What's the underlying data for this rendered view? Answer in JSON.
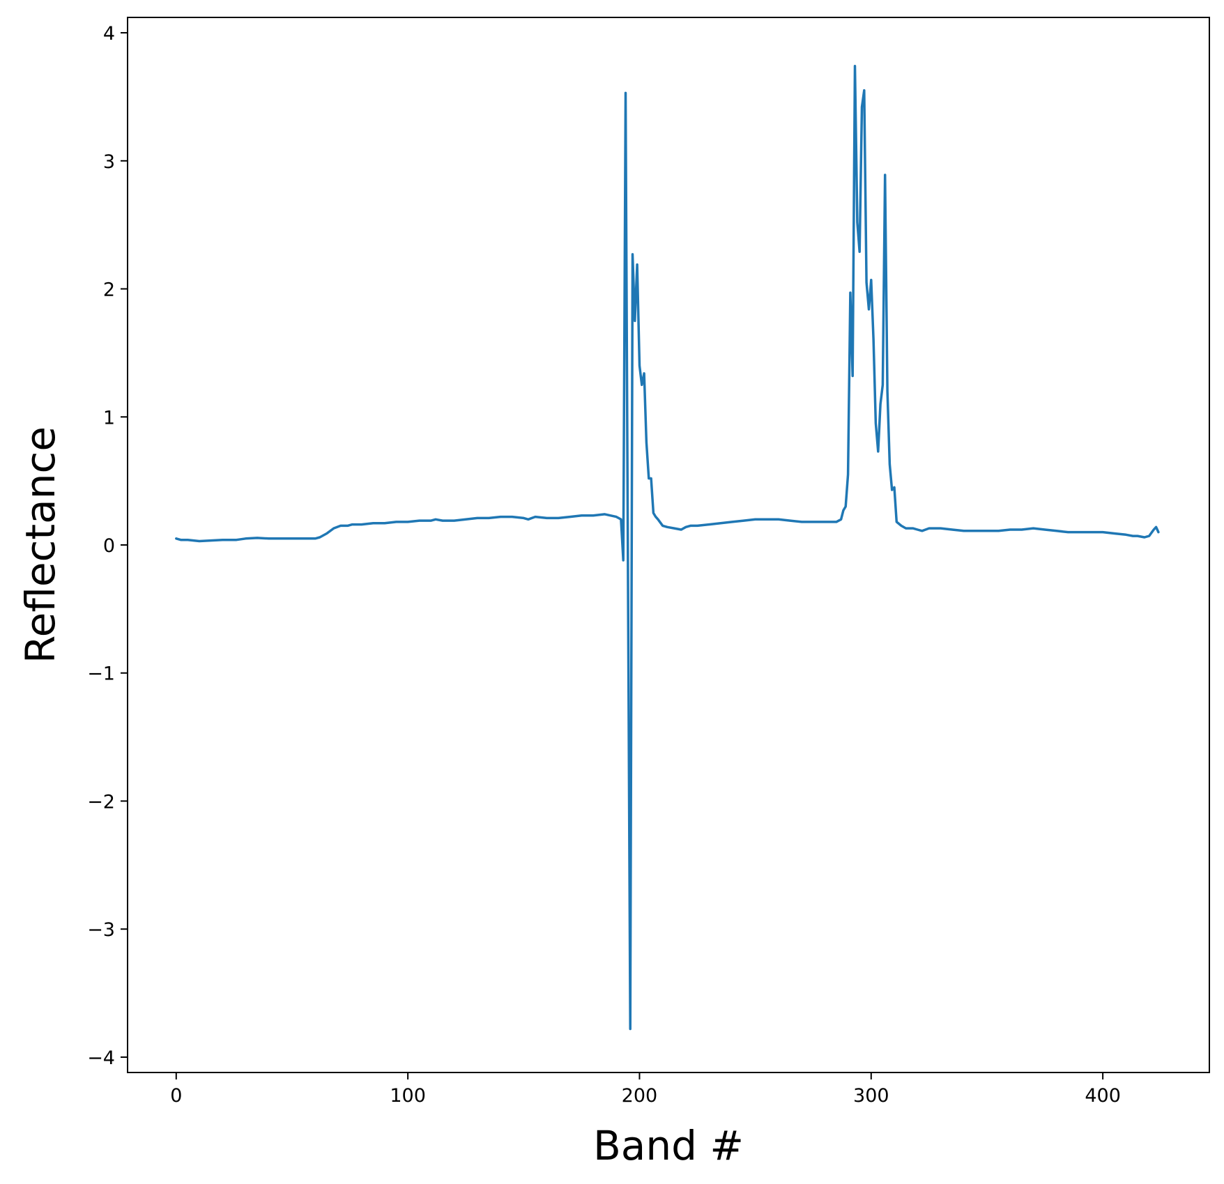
{
  "chart_data": {
    "type": "line",
    "title": "",
    "xlabel": "Band #",
    "ylabel": "Reflectance",
    "xlim": [
      -21,
      446
    ],
    "ylim": [
      -4.12,
      4.12
    ],
    "grid": false,
    "legend": "none",
    "line_color": "#1f77b4",
    "x_ticks": [
      {
        "value": 0,
        "label": "0"
      },
      {
        "value": 100,
        "label": "100"
      },
      {
        "value": 200,
        "label": "200"
      },
      {
        "value": 300,
        "label": "300"
      },
      {
        "value": 400,
        "label": "400"
      }
    ],
    "y_ticks": [
      {
        "value": -4,
        "label": "−4"
      },
      {
        "value": -3,
        "label": "−3"
      },
      {
        "value": -2,
        "label": "−2"
      },
      {
        "value": -1,
        "label": "−1"
      },
      {
        "value": 0,
        "label": "0"
      },
      {
        "value": 1,
        "label": "1"
      },
      {
        "value": 2,
        "label": "2"
      },
      {
        "value": 3,
        "label": "3"
      },
      {
        "value": 4,
        "label": "4"
      }
    ],
    "series": [
      {
        "x": [
          0,
          2,
          5,
          10,
          15,
          20,
          26,
          30,
          35,
          40,
          45,
          50,
          55,
          60,
          62,
          65,
          68,
          71,
          74,
          76,
          78,
          80,
          85,
          90,
          95,
          100,
          105,
          110,
          112,
          115,
          120,
          125,
          130,
          135,
          140,
          145,
          150,
          152,
          155,
          160,
          165,
          170,
          175,
          180,
          185,
          190,
          192,
          193,
          194,
          195,
          196,
          197,
          198,
          199,
          200,
          201,
          202,
          203,
          204,
          205,
          206,
          207,
          208,
          210,
          212,
          215,
          218,
          220,
          222,
          225,
          230,
          235,
          240,
          245,
          250,
          255,
          260,
          265,
          270,
          275,
          280,
          285,
          287,
          288,
          289,
          290,
          291,
          292,
          293,
          294,
          295,
          296,
          297,
          298,
          299,
          300,
          301,
          302,
          303,
          304,
          305,
          306,
          307,
          308,
          309,
          310,
          311,
          313,
          315,
          318,
          320,
          322,
          325,
          328,
          330,
          335,
          340,
          345,
          350,
          355,
          360,
          365,
          370,
          375,
          380,
          385,
          390,
          395,
          400,
          405,
          410,
          413,
          415,
          418,
          420,
          422,
          423,
          424
        ],
        "y": [
          0.05,
          0.04,
          0.04,
          0.03,
          0.035,
          0.04,
          0.04,
          0.05,
          0.055,
          0.05,
          0.05,
          0.05,
          0.05,
          0.05,
          0.06,
          0.09,
          0.13,
          0.15,
          0.15,
          0.16,
          0.16,
          0.16,
          0.17,
          0.17,
          0.18,
          0.18,
          0.19,
          0.19,
          0.2,
          0.19,
          0.19,
          0.2,
          0.21,
          0.21,
          0.22,
          0.22,
          0.21,
          0.2,
          0.22,
          0.21,
          0.21,
          0.22,
          0.23,
          0.23,
          0.24,
          0.22,
          0.2,
          -0.12,
          3.53,
          -0.1,
          -3.78,
          2.27,
          1.75,
          2.19,
          1.4,
          1.25,
          1.34,
          0.8,
          0.52,
          0.52,
          0.25,
          0.22,
          0.2,
          0.15,
          0.14,
          0.13,
          0.12,
          0.14,
          0.15,
          0.15,
          0.16,
          0.17,
          0.18,
          0.19,
          0.2,
          0.2,
          0.2,
          0.19,
          0.18,
          0.18,
          0.18,
          0.18,
          0.2,
          0.27,
          0.3,
          0.55,
          1.97,
          1.32,
          3.74,
          2.52,
          2.29,
          3.42,
          3.55,
          2.05,
          1.84,
          2.07,
          1.61,
          0.95,
          0.73,
          1.1,
          1.25,
          2.89,
          1.2,
          0.63,
          0.43,
          0.45,
          0.18,
          0.15,
          0.13,
          0.13,
          0.12,
          0.11,
          0.13,
          0.13,
          0.13,
          0.12,
          0.11,
          0.11,
          0.11,
          0.11,
          0.12,
          0.12,
          0.13,
          0.12,
          0.11,
          0.1,
          0.1,
          0.1,
          0.1,
          0.09,
          0.08,
          0.07,
          0.07,
          0.06,
          0.07,
          0.12,
          0.14,
          0.1
        ]
      }
    ]
  }
}
